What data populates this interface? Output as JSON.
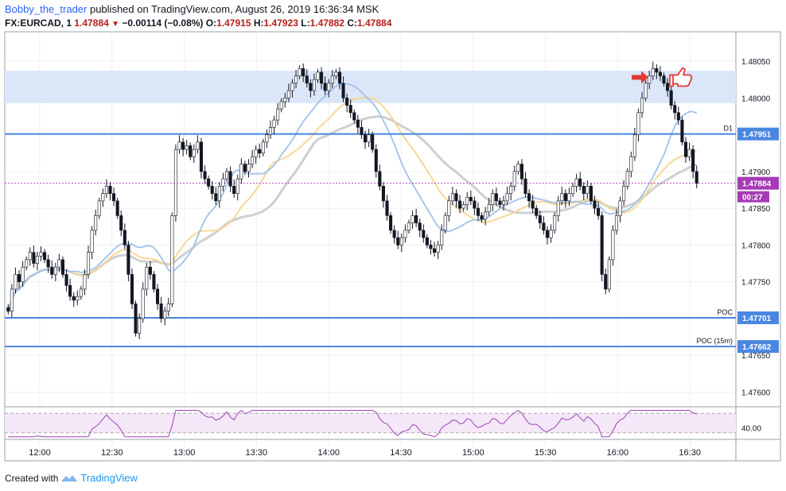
{
  "header": {
    "username": "Bobby_the_trader",
    "published_text": " published on TradingView.com, August 26, 2019 16:36:34 MSK",
    "symbol": "FX:EURCAD, 1",
    "last": "1.47884",
    "change": "−0.00114 (−0.08%)",
    "open_label": "O:",
    "open": "1.47915",
    "high_label": "H:",
    "high": "1.47923",
    "low_label": "L:",
    "low": "1.47882",
    "close_label": "C:",
    "close": "1.47884"
  },
  "footer": {
    "created_with": "Created with",
    "brand": "TradingView"
  },
  "colors": {
    "up": "#ffffff",
    "down": "#131722",
    "hline": "#4a87e0",
    "zone": "#dbe6f8",
    "ma_gray": "#cfcfcf",
    "ma_orange": "#f7d58a",
    "ma_blue": "#9fc2ec",
    "rsi": "#a041b8",
    "arrow": "#e53935"
  },
  "chart_data": {
    "type": "candlestick",
    "ylim": [
      1.4758,
      1.4809
    ],
    "y_ticks": [
      "1.48050",
      "1.48000",
      "1.47950",
      "1.47900",
      "1.47850",
      "1.47800",
      "1.47750",
      "1.47700",
      "1.47650",
      "1.47600"
    ],
    "x_ticks": [
      "12:00",
      "12:30",
      "13:00",
      "13:30",
      "14:00",
      "14:30",
      "15:00",
      "15:30",
      "16:00",
      "16:30"
    ],
    "zone": {
      "low": 1.47993,
      "high": 1.48037
    },
    "lines": [
      {
        "label": "D1",
        "price": 1.47951,
        "price_label": "1.47951"
      },
      {
        "label": "POC",
        "price": 1.47701,
        "price_label": "1.47701"
      },
      {
        "label": "POC (15m)",
        "price": 1.47662,
        "price_label": "1.47662"
      }
    ],
    "last_price": {
      "price": 1.47884,
      "label": "1.47884",
      "countdown": "00:27"
    },
    "closes": [
      1.4771,
      1.4774,
      1.4776,
      1.4775,
      1.4777,
      1.4778,
      1.4779,
      1.47775,
      1.47785,
      1.4779,
      1.4778,
      1.4777,
      1.4776,
      1.4777,
      1.4778,
      1.4776,
      1.47745,
      1.4773,
      1.47725,
      1.4773,
      1.4774,
      1.4776,
      1.4779,
      1.4782,
      1.4784,
      1.4786,
      1.4787,
      1.4788,
      1.4787,
      1.4786,
      1.4784,
      1.4782,
      1.478,
      1.4776,
      1.4772,
      1.4768,
      1.477,
      1.4774,
      1.4777,
      1.4776,
      1.4774,
      1.4772,
      1.477,
      1.4771,
      1.4772,
      1.4784,
      1.4793,
      1.4794,
      1.4793,
      1.47935,
      1.4792,
      1.4793,
      1.4794,
      1.479,
      1.4789,
      1.4788,
      1.4787,
      1.4786,
      1.4788,
      1.4789,
      1.479,
      1.4788,
      1.4787,
      1.4789,
      1.4791,
      1.479,
      1.4791,
      1.4792,
      1.4793,
      1.47925,
      1.4794,
      1.4795,
      1.4796,
      1.4797,
      1.47985,
      1.47995,
      1.48,
      1.4801,
      1.4802,
      1.4803,
      1.4804,
      1.4803,
      1.4802,
      1.4801,
      1.48025,
      1.48035,
      1.4802,
      1.4801,
      1.4802,
      1.4803,
      1.48035,
      1.4802,
      1.48,
      1.4799,
      1.4798,
      1.4797,
      1.4796,
      1.4795,
      1.4794,
      1.4795,
      1.4793,
      1.479,
      1.4788,
      1.4786,
      1.4784,
      1.4782,
      1.4781,
      1.478,
      1.4781,
      1.4782,
      1.4783,
      1.4784,
      1.4783,
      1.4782,
      1.4781,
      1.478,
      1.47795,
      1.4779,
      1.478,
      1.4782,
      1.4784,
      1.4786,
      1.4787,
      1.4786,
      1.4785,
      1.47855,
      1.47865,
      1.4786,
      1.4785,
      1.4784,
      1.47835,
      1.47845,
      1.47855,
      1.4787,
      1.4786,
      1.47855,
      1.4786,
      1.4787,
      1.4788,
      1.479,
      1.4791,
      1.4789,
      1.4787,
      1.4786,
      1.4785,
      1.4784,
      1.4783,
      1.4782,
      1.4781,
      1.4782,
      1.4784,
      1.4786,
      1.4787,
      1.4786,
      1.4787,
      1.4788,
      1.4789,
      1.4788,
      1.4787,
      1.4788,
      1.4786,
      1.4785,
      1.4784,
      1.4776,
      1.4774,
      1.4778,
      1.4782,
      1.4784,
      1.4786,
      1.4788,
      1.479,
      1.4792,
      1.4795,
      1.4798,
      1.48,
      1.4802,
      1.4803,
      1.4804,
      1.48035,
      1.4803,
      1.4802,
      1.4801,
      1.4799,
      1.4798,
      1.4797,
      1.4794,
      1.4792,
      1.4793,
      1.479,
      1.47884
    ],
    "rsi": {
      "level": "40.00",
      "upper": 70,
      "lower": 30,
      "ylim": [
        20,
        80
      ]
    }
  }
}
